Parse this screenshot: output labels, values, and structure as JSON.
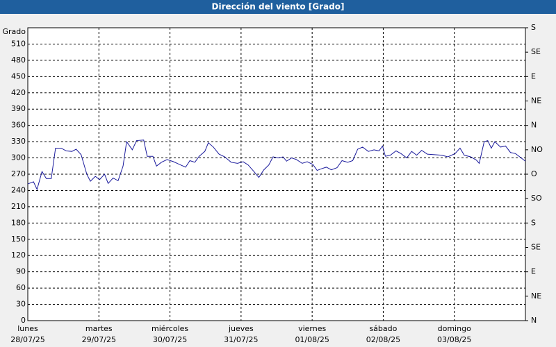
{
  "chart_data": {
    "type": "line",
    "title": "Dirección del viento [Grado]",
    "ylabel": "Grado",
    "xlim": [
      0,
      7
    ],
    "xticks": [
      {
        "value": 0,
        "label": "lunes\n28/07/25"
      },
      {
        "value": 1,
        "label": "martes\n29/07/25"
      },
      {
        "value": 2,
        "label": "miércoles\n30/07/25"
      },
      {
        "value": 3,
        "label": "jueves\n31/07/25"
      },
      {
        "value": 4,
        "label": "viernes\n01/08/25"
      },
      {
        "value": 5,
        "label": "sábado\n02/08/25"
      },
      {
        "value": 6,
        "label": "domingo\n03/08/25"
      }
    ],
    "ylim": [
      0,
      540
    ],
    "yticks": [
      0,
      30,
      60,
      90,
      120,
      150,
      180,
      210,
      240,
      270,
      300,
      330,
      360,
      390,
      420,
      450,
      480,
      510
    ],
    "y2lim": [
      0,
      540
    ],
    "y2ticks": [
      {
        "value": 0,
        "label": "N"
      },
      {
        "value": 45,
        "label": "NE"
      },
      {
        "value": 90,
        "label": "E"
      },
      {
        "value": 135,
        "label": "SE"
      },
      {
        "value": 180,
        "label": "S"
      },
      {
        "value": 225,
        "label": "SO"
      },
      {
        "value": 270,
        "label": "O"
      },
      {
        "value": 315,
        "label": "NO"
      },
      {
        "value": 360,
        "label": "N"
      },
      {
        "value": 405,
        "label": "NE"
      },
      {
        "value": 450,
        "label": "E"
      },
      {
        "value": 495,
        "label": "SE"
      },
      {
        "value": 540,
        "label": "S"
      }
    ],
    "grid": true,
    "x": [
      0,
      0.08,
      0.13,
      0.2,
      0.26,
      0.33,
      0.39,
      0.47,
      0.54,
      0.62,
      0.68,
      0.75,
      0.83,
      0.88,
      0.95,
      1.01,
      1.08,
      1.13,
      1.2,
      1.27,
      1.34,
      1.39,
      1.47,
      1.53,
      1.63,
      1.68,
      1.76,
      1.81,
      1.88,
      1.96,
      2.05,
      2.15,
      2.22,
      2.28,
      2.35,
      2.41,
      2.49,
      2.54,
      2.61,
      2.69,
      2.77,
      2.86,
      2.95,
      3.03,
      3.1,
      3.18,
      3.25,
      3.32,
      3.39,
      3.45,
      3.52,
      3.59,
      3.64,
      3.71,
      3.78,
      3.86,
      3.93,
      4.01,
      4.07,
      4.13,
      4.2,
      4.27,
      4.35,
      4.42,
      4.5,
      4.57,
      4.64,
      4.71,
      4.79,
      4.87,
      4.94,
      4.99,
      5.03,
      5.1,
      5.18,
      5.25,
      5.33,
      5.4,
      5.47,
      5.54,
      5.62,
      5.72,
      5.82,
      5.91,
      6.01,
      6.08,
      6.14,
      6.23,
      6.31,
      6.35,
      6.42,
      6.47,
      6.52,
      6.57,
      6.65,
      6.72,
      6.79,
      6.86,
      6.92,
      7
    ],
    "series": [
      {
        "color": "#1a1a9c",
        "values": [
          252,
          256,
          242,
          275,
          262,
          262,
          318,
          318,
          313,
          312,
          316,
          306,
          270,
          257,
          266,
          260,
          270,
          253,
          263,
          258,
          285,
          330,
          315,
          332,
          333,
          303,
          303,
          285,
          292,
          297,
          293,
          287,
          283,
          295,
          292,
          303,
          312,
          328,
          320,
          307,
          302,
          292,
          290,
          293,
          287,
          275,
          264,
          278,
          287,
          302,
          300,
          302,
          294,
          300,
          297,
          290,
          293,
          288,
          277,
          280,
          283,
          278,
          282,
          295,
          292,
          295,
          316,
          320,
          312,
          315,
          313,
          322,
          303,
          305,
          313,
          308,
          300,
          312,
          305,
          314,
          307,
          306,
          305,
          302,
          308,
          318,
          305,
          302,
          296,
          290,
          330,
          332,
          318,
          330,
          320,
          322,
          310,
          308,
          302,
          294
        ]
      }
    ]
  }
}
